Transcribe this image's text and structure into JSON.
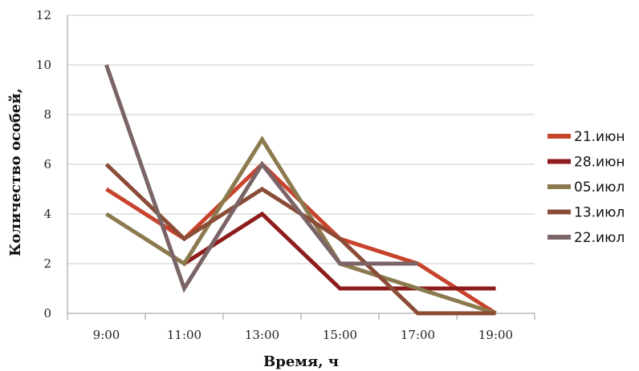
{
  "chart_data": {
    "type": "line",
    "title": "",
    "xlabel": "Время, ч",
    "ylabel": "Количество особей,",
    "categories": [
      "9:00",
      "11:00",
      "13:00",
      "15:00",
      "17:00",
      "19:00"
    ],
    "ylim": [
      0,
      12
    ],
    "yticks": [
      0,
      2,
      4,
      6,
      8,
      10,
      12
    ],
    "grid": true,
    "legend": "right",
    "series": [
      {
        "name": "21.июн",
        "color": "#c8432c",
        "values": [
          5,
          3,
          6,
          3,
          2,
          0
        ]
      },
      {
        "name": "28.июн",
        "color": "#8e1c1c",
        "values": [
          null,
          2,
          4,
          1,
          1,
          1
        ]
      },
      {
        "name": "05.июл",
        "color": "#8c7a4f",
        "values": [
          4,
          2,
          7,
          2,
          1,
          0
        ]
      },
      {
        "name": "13.июл",
        "color": "#8a4c36",
        "values": [
          6,
          3,
          5,
          3,
          0,
          0
        ]
      },
      {
        "name": "22.июл",
        "color": "#7b6466",
        "values": [
          10,
          1,
          6,
          2,
          2,
          null
        ]
      }
    ]
  }
}
